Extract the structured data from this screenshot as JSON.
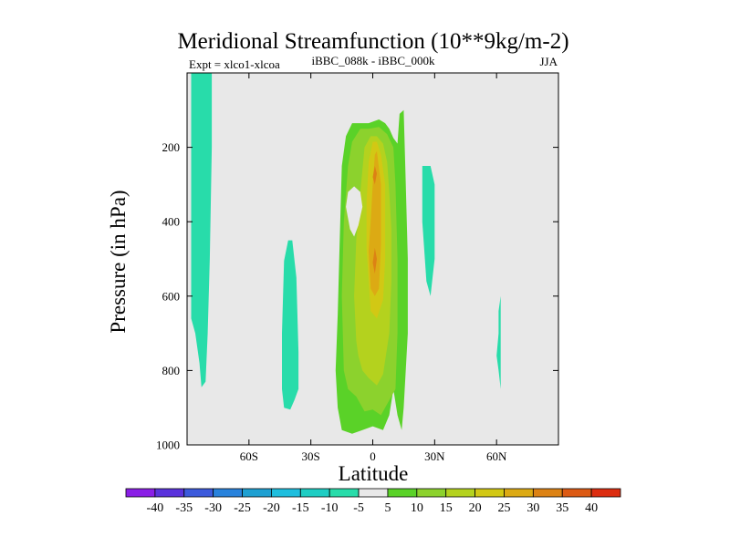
{
  "chart_data": {
    "type": "heatmap",
    "title": "Meridional Streamfunction (10**9kg/m-2)",
    "subtitle_left": "Expt = xlco1-xlcoa",
    "subtitle_center": "iBBC_088k - iBBC_000k",
    "subtitle_right": "JJA",
    "xlabel": "Latitude",
    "ylabel": "Pressure (in hPa)",
    "xlim": [
      -90,
      90
    ],
    "ylim": [
      1000,
      0
    ],
    "x_ticks": [
      {
        "value": -60,
        "label": "60S"
      },
      {
        "value": -30,
        "label": "30S"
      },
      {
        "value": 0,
        "label": "0"
      },
      {
        "value": 30,
        "label": "30N"
      },
      {
        "value": 60,
        "label": "60N"
      }
    ],
    "y_ticks": [
      {
        "value": 200,
        "label": "200"
      },
      {
        "value": 400,
        "label": "400"
      },
      {
        "value": 600,
        "label": "600"
      },
      {
        "value": 800,
        "label": "800"
      },
      {
        "value": 1000,
        "label": "1000"
      }
    ],
    "background_color": "#e8e8e8",
    "levels": [
      "-40",
      "-35",
      "-30",
      "-25",
      "-20",
      "-15",
      "-10",
      "-5",
      "5",
      "10",
      "15",
      "20",
      "25",
      "30",
      "35",
      "40"
    ],
    "level_colors": [
      "#8a1ee6",
      "#5a32dc",
      "#3c5adc",
      "#2882dc",
      "#1ea0d2",
      "#1ebede",
      "#1ecdc3",
      "#28dcaa",
      "#e8e8e8",
      "#5ad228",
      "#8cd22d",
      "#b4d21e",
      "#d2c814",
      "#dcaa14",
      "#dc8214",
      "#dc5a14",
      "#dc2d10"
    ],
    "regions": [
      {
        "name": "positive-5-10",
        "color": "#5ad228",
        "polygon": [
          [
            -15,
            960
          ],
          [
            -17,
            900
          ],
          [
            -18,
            800
          ],
          [
            -17,
            650
          ],
          [
            -16,
            450
          ],
          [
            -15,
            250
          ],
          [
            -13,
            170
          ],
          [
            -10,
            135
          ],
          [
            -2,
            135
          ],
          [
            3,
            125
          ],
          [
            6,
            135
          ],
          [
            8,
            150
          ],
          [
            10,
            175
          ],
          [
            12,
            190
          ],
          [
            13,
            110
          ],
          [
            15,
            100
          ],
          [
            16,
            300
          ],
          [
            17,
            500
          ],
          [
            17,
            700
          ],
          [
            15,
            900
          ],
          [
            14,
            960
          ],
          [
            12,
            920
          ],
          [
            10,
            850
          ],
          [
            8,
            920
          ],
          [
            5,
            960
          ],
          [
            0,
            950
          ],
          [
            -5,
            960
          ],
          [
            -10,
            970
          ]
        ]
      },
      {
        "name": "positive-10-15",
        "color": "#8cd22d",
        "polygon": [
          [
            -14,
            800
          ],
          [
            -15,
            600
          ],
          [
            -14,
            400
          ],
          [
            -12,
            250
          ],
          [
            -10,
            185
          ],
          [
            -6,
            150
          ],
          [
            -2,
            150
          ],
          [
            3,
            145
          ],
          [
            7,
            165
          ],
          [
            10,
            200
          ],
          [
            11,
            300
          ],
          [
            12,
            500
          ],
          [
            12,
            700
          ],
          [
            11,
            850
          ],
          [
            8,
            880
          ],
          [
            4,
            920
          ],
          [
            0,
            905
          ],
          [
            -4,
            910
          ],
          [
            -8,
            870
          ],
          [
            -12,
            850
          ]
        ]
      },
      {
        "name": "positive-15-20",
        "color": "#b4d21e",
        "polygon": [
          [
            -8,
            720
          ],
          [
            -9,
            600
          ],
          [
            -8,
            450
          ],
          [
            -6,
            320
          ],
          [
            -4,
            200
          ],
          [
            -1,
            170
          ],
          [
            2,
            170
          ],
          [
            5,
            190
          ],
          [
            7,
            240
          ],
          [
            8,
            320
          ],
          [
            9,
            420
          ],
          [
            9,
            560
          ],
          [
            8,
            700
          ],
          [
            5,
            810
          ],
          [
            2,
            840
          ],
          [
            -2,
            820
          ],
          [
            -5,
            800
          ],
          [
            -7,
            760
          ]
        ]
      },
      {
        "name": "positive-20-25",
        "color": "#d2c814",
        "polygon": [
          [
            -3,
            470
          ],
          [
            -3,
            350
          ],
          [
            -2,
            240
          ],
          [
            0,
            185
          ],
          [
            2,
            185
          ],
          [
            4,
            220
          ],
          [
            6,
            300
          ],
          [
            6,
            400
          ],
          [
            6,
            500
          ],
          [
            5,
            610
          ],
          [
            2,
            660
          ],
          [
            -1,
            640
          ]
        ]
      },
      {
        "name": "positive-25-30",
        "color": "#dcaa14",
        "polygon": [
          [
            -2,
            480
          ],
          [
            -1,
            400
          ],
          [
            0,
            300
          ],
          [
            1,
            220
          ],
          [
            2,
            210
          ],
          [
            4,
            300
          ],
          [
            4,
            460
          ],
          [
            3,
            580
          ],
          [
            1,
            600
          ],
          [
            -1,
            580
          ]
        ]
      },
      {
        "name": "positive-30-35",
        "color": "#dc8214",
        "polygon": [
          [
            0,
            280
          ],
          [
            1,
            250
          ],
          [
            2,
            270
          ],
          [
            1,
            300
          ]
        ]
      },
      {
        "name": "positive-30-35-b",
        "color": "#dc8214",
        "polygon": [
          [
            0,
            510
          ],
          [
            1,
            470
          ],
          [
            2,
            500
          ],
          [
            1,
            540
          ]
        ]
      },
      {
        "name": "hole-small-change",
        "color": "#e8e8e8",
        "polygon": [
          [
            -11,
            420
          ],
          [
            -13,
            360
          ],
          [
            -12,
            320
          ],
          [
            -9,
            305
          ],
          [
            -6,
            320
          ],
          [
            -5,
            360
          ],
          [
            -7,
            410
          ],
          [
            -9,
            440
          ]
        ]
      },
      {
        "name": "negative-5-10-west",
        "color": "#28dcaa",
        "polygon": [
          [
            -88,
            0
          ],
          [
            -78,
            0
          ],
          [
            -78,
            200
          ],
          [
            -79,
            500
          ],
          [
            -80,
            700
          ],
          [
            -81,
            830
          ],
          [
            -83,
            845
          ],
          [
            -84,
            780
          ],
          [
            -86,
            700
          ],
          [
            -88,
            660
          ]
        ]
      },
      {
        "name": "negative-5-10-sh-mid",
        "color": "#28dcaa",
        "polygon": [
          [
            -43,
            505
          ],
          [
            -41,
            450
          ],
          [
            -39,
            450
          ],
          [
            -37,
            550
          ],
          [
            -36,
            750
          ],
          [
            -36,
            850
          ],
          [
            -38,
            880
          ],
          [
            -40,
            905
          ],
          [
            -43,
            900
          ],
          [
            -44,
            850
          ],
          [
            -44,
            700
          ]
        ]
      },
      {
        "name": "negative-5-10-nh-sub",
        "color": "#28dcaa",
        "polygon": [
          [
            24,
            250
          ],
          [
            28,
            250
          ],
          [
            30,
            300
          ],
          [
            30,
            500
          ],
          [
            28,
            600
          ],
          [
            26,
            560
          ],
          [
            24,
            400
          ]
        ]
      },
      {
        "name": "negative-5-10-nh-high",
        "color": "#28dcaa",
        "polygon": [
          [
            61,
            640
          ],
          [
            62,
            600
          ],
          [
            62,
            700
          ],
          [
            62,
            850
          ],
          [
            61,
            800
          ],
          [
            60,
            760
          ],
          [
            61,
            700
          ]
        ]
      }
    ]
  }
}
